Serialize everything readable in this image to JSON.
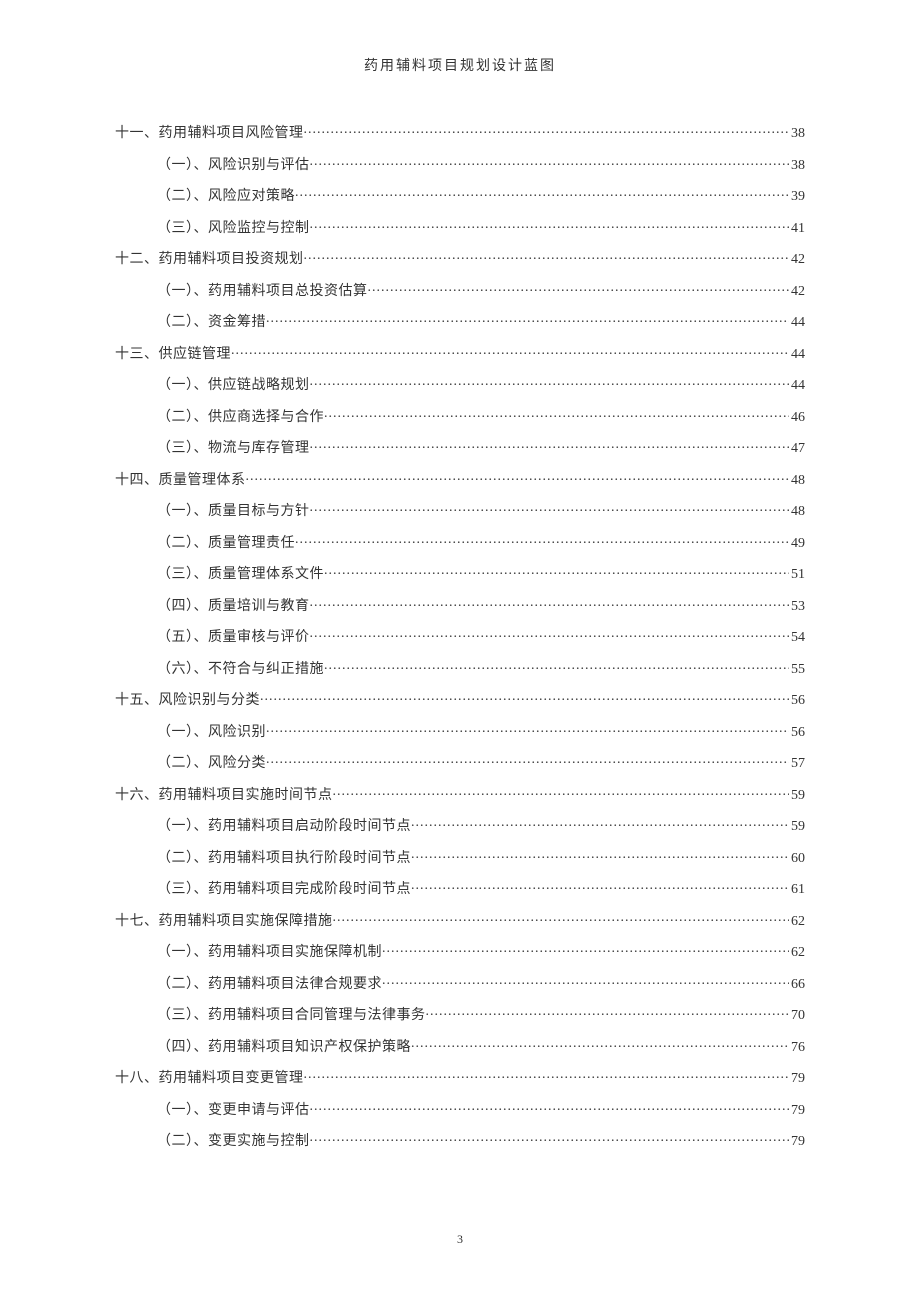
{
  "document": {
    "header_title": "药用辅料项目规划设计蓝图",
    "page_number": "3",
    "font_family": "SimSun",
    "text_color": "#333333",
    "background_color": "#ffffff"
  },
  "toc": {
    "entries": [
      {
        "level": 1,
        "label": "十一、药用辅料项目风险管理",
        "page": "38"
      },
      {
        "level": 2,
        "label": "（一）、风险识别与评估",
        "page": "38"
      },
      {
        "level": 2,
        "label": "（二）、风险应对策略",
        "page": "39"
      },
      {
        "level": 2,
        "label": "（三）、风险监控与控制",
        "page": "41"
      },
      {
        "level": 1,
        "label": "十二、药用辅料项目投资规划",
        "page": "42"
      },
      {
        "level": 2,
        "label": "（一）、药用辅料项目总投资估算",
        "page": "42"
      },
      {
        "level": 2,
        "label": "（二）、资金筹措",
        "page": "44"
      },
      {
        "level": 1,
        "label": "十三、供应链管理 ",
        "page": "44"
      },
      {
        "level": 2,
        "label": "（一）、供应链战略规划",
        "page": "44"
      },
      {
        "level": 2,
        "label": "（二）、供应商选择与合作",
        "page": "46"
      },
      {
        "level": 2,
        "label": "（三）、物流与库存管理",
        "page": "47"
      },
      {
        "level": 1,
        "label": "十四、质量管理体系 ",
        "page": "48"
      },
      {
        "level": 2,
        "label": "（一）、质量目标与方针",
        "page": "48"
      },
      {
        "level": 2,
        "label": "（二）、质量管理责任",
        "page": "49"
      },
      {
        "level": 2,
        "label": "（三）、质量管理体系文件",
        "page": "51"
      },
      {
        "level": 2,
        "label": "（四）、质量培训与教育",
        "page": "53"
      },
      {
        "level": 2,
        "label": "（五）、质量审核与评价",
        "page": "54"
      },
      {
        "level": 2,
        "label": "（六）、不符合与纠正措施",
        "page": "55"
      },
      {
        "level": 1,
        "label": "十五、风险识别与分类",
        "page": "56"
      },
      {
        "level": 2,
        "label": "（一）、风险识别 ",
        "page": "56"
      },
      {
        "level": 2,
        "label": "（二）、风险分类 ",
        "page": "57"
      },
      {
        "level": 1,
        "label": "十六、药用辅料项目实施时间节点",
        "page": "59"
      },
      {
        "level": 2,
        "label": "（一）、药用辅料项目启动阶段时间节点",
        "page": "59"
      },
      {
        "level": 2,
        "label": "（二）、药用辅料项目执行阶段时间节点",
        "page": "60"
      },
      {
        "level": 2,
        "label": "（三）、药用辅料项目完成阶段时间节点",
        "page": "61"
      },
      {
        "level": 1,
        "label": "十七、药用辅料项目实施保障措施",
        "page": "62"
      },
      {
        "level": 2,
        "label": "（一）、药用辅料项目实施保障机制",
        "page": "62"
      },
      {
        "level": 2,
        "label": "（二）、药用辅料项目法律合规要求",
        "page": "66"
      },
      {
        "level": 2,
        "label": "（三）、药用辅料项目合同管理与法律事务",
        "page": "70"
      },
      {
        "level": 2,
        "label": "（四）、药用辅料项目知识产权保护策略",
        "page": "76"
      },
      {
        "level": 1,
        "label": "十八、药用辅料项目变更管理",
        "page": "79"
      },
      {
        "level": 2,
        "label": "（一）、变更申请与评估",
        "page": "79"
      },
      {
        "level": 2,
        "label": "（二）、变更实施与控制",
        "page": "79"
      }
    ]
  }
}
